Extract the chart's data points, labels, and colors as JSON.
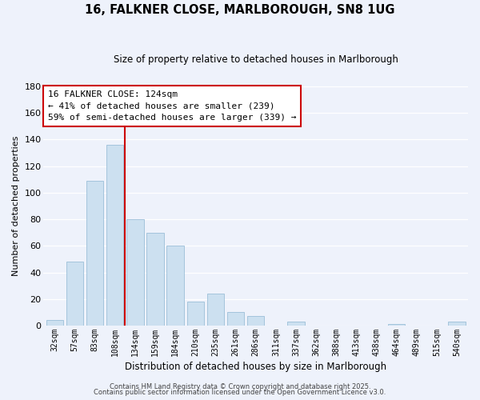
{
  "title": "16, FALKNER CLOSE, MARLBOROUGH, SN8 1UG",
  "subtitle": "Size of property relative to detached houses in Marlborough",
  "xlabel": "Distribution of detached houses by size in Marlborough",
  "ylabel": "Number of detached properties",
  "bar_labels": [
    "32sqm",
    "57sqm",
    "83sqm",
    "108sqm",
    "134sqm",
    "159sqm",
    "184sqm",
    "210sqm",
    "235sqm",
    "261sqm",
    "286sqm",
    "311sqm",
    "337sqm",
    "362sqm",
    "388sqm",
    "413sqm",
    "438sqm",
    "464sqm",
    "489sqm",
    "515sqm",
    "540sqm"
  ],
  "bar_values": [
    4,
    48,
    109,
    136,
    80,
    70,
    60,
    18,
    24,
    10,
    7,
    0,
    3,
    0,
    0,
    0,
    0,
    1,
    0,
    0,
    3
  ],
  "bar_color": "#cce0f0",
  "bar_edge_color": "#9bbfd8",
  "vline_x_index": 3,
  "vline_color": "#cc0000",
  "ylim": [
    0,
    180
  ],
  "yticks": [
    0,
    20,
    40,
    60,
    80,
    100,
    120,
    140,
    160,
    180
  ],
  "annotation_text": "16 FALKNER CLOSE: 124sqm\n← 41% of detached houses are smaller (239)\n59% of semi-detached houses are larger (339) →",
  "annotation_box_edgecolor": "#cc0000",
  "annotation_box_facecolor": "#ffffff",
  "bg_color": "#eef2fb",
  "grid_color": "#ffffff",
  "footer1": "Contains HM Land Registry data © Crown copyright and database right 2025.",
  "footer2": "Contains public sector information licensed under the Open Government Licence v3.0."
}
